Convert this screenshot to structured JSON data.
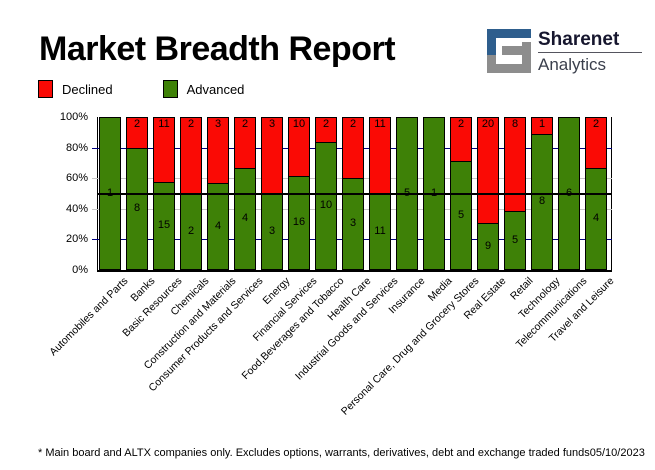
{
  "header": {
    "title": "Market Breadth Report",
    "logo": {
      "line1": "Sharenet",
      "line2": "Analytics",
      "icon_blue": "#2e5e8d",
      "icon_gray": "#8d8d8d"
    }
  },
  "legend": [
    {
      "label": "Declined",
      "color": "#fa0a05"
    },
    {
      "label": "Advanced",
      "color": "#3e8107"
    }
  ],
  "chart_data": {
    "type": "bar",
    "stacked": true,
    "normalized": "percent",
    "title": "Market Breadth Report",
    "xlabel": "",
    "ylabel": "",
    "ylim": [
      0,
      100
    ],
    "legend_position": "top-left",
    "grid": true,
    "categories": [
      "Automobiles and Parts",
      "Banks",
      "Basic Resources",
      "Chemicals",
      "Construction and Materials",
      "Consumer Products and Services",
      "Energy",
      "Financial Services",
      "Food,Beverages and Tobacco",
      "Health Care",
      "Industrial Goods and Services",
      "Insurance",
      "Media",
      "Personal Care, Drug and Grocery Stores",
      "Real Estate",
      "Retail",
      "Technology",
      "Telecommunications",
      "Travel and Leisure"
    ],
    "series": [
      {
        "name": "Declined",
        "color": "#fa0a05",
        "values": [
          0,
          2,
          11,
          2,
          3,
          2,
          3,
          10,
          2,
          2,
          11,
          0,
          0,
          2,
          20,
          8,
          1,
          0,
          2
        ]
      },
      {
        "name": "Advanced",
        "color": "#3e8107",
        "values": [
          1,
          8,
          15,
          2,
          4,
          4,
          3,
          16,
          10,
          3,
          11,
          5,
          1,
          5,
          9,
          5,
          8,
          6,
          4
        ]
      }
    ],
    "y_ticks": [
      {
        "label": "100%",
        "value": 100
      },
      {
        "label": "80%",
        "value": 80
      },
      {
        "label": "60%",
        "value": 60
      },
      {
        "label": "40%",
        "value": 40
      },
      {
        "label": "20%",
        "value": 20
      },
      {
        "label": "0%",
        "value": 0
      }
    ],
    "gridlines": [
      {
        "value": 80,
        "color": "#000080"
      },
      {
        "value": 60,
        "color": "#c6c6c6"
      },
      {
        "value": 40,
        "color": "#c6c6c6"
      },
      {
        "value": 20,
        "color": "#000080"
      }
    ],
    "reference_line": {
      "value": 50,
      "color": "#000000"
    }
  },
  "footer": {
    "note": "* Main board and ALTX companies only. Excludes options, warrants, derivatives, debt and exchange traded funds",
    "date": "05/10/2023"
  }
}
